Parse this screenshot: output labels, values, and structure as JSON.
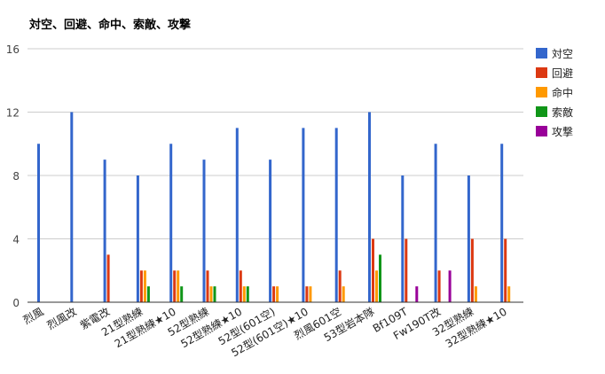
{
  "chart_data": {
    "type": "bar",
    "title": "対空、回避、命中、索敵、攻撃",
    "categories": [
      "烈風",
      "烈風改",
      "紫電改",
      "21型熟練",
      "21型熟練★10",
      "52型熟練",
      "52型熟練★10",
      "52型(601空)",
      "52型(601空)★10",
      "烈風601空",
      "53型岩本隊",
      "Bf109T",
      "Fw190T改",
      "32型熟練",
      "32型熟練★10"
    ],
    "series": [
      {
        "name": "対空",
        "color": "#3366cc",
        "values": [
          10,
          12,
          9,
          8,
          10,
          9,
          11,
          9,
          11,
          11,
          12,
          8,
          10,
          8,
          10
        ]
      },
      {
        "name": "回避",
        "color": "#dc3912",
        "values": [
          0,
          0,
          3,
          2,
          2,
          2,
          2,
          1,
          1,
          2,
          4,
          4,
          2,
          4,
          4
        ]
      },
      {
        "name": "命中",
        "color": "#ff9900",
        "values": [
          0,
          0,
          0,
          2,
          2,
          1,
          1,
          1,
          1,
          1,
          2,
          0,
          0,
          1,
          1
        ]
      },
      {
        "name": "索敵",
        "color": "#109618",
        "values": [
          0,
          0,
          0,
          1,
          1,
          1,
          1,
          0,
          0,
          0,
          3,
          0,
          0,
          0,
          0
        ]
      },
      {
        "name": "攻撃",
        "color": "#990099",
        "values": [
          0,
          0,
          0,
          0,
          0,
          0,
          0,
          0,
          0,
          0,
          0,
          1,
          2,
          0,
          0
        ]
      }
    ],
    "yticks": [
      0,
      4,
      8,
      12,
      16
    ],
    "ylim": [
      0,
      16
    ],
    "grid": true,
    "legend": "right"
  }
}
